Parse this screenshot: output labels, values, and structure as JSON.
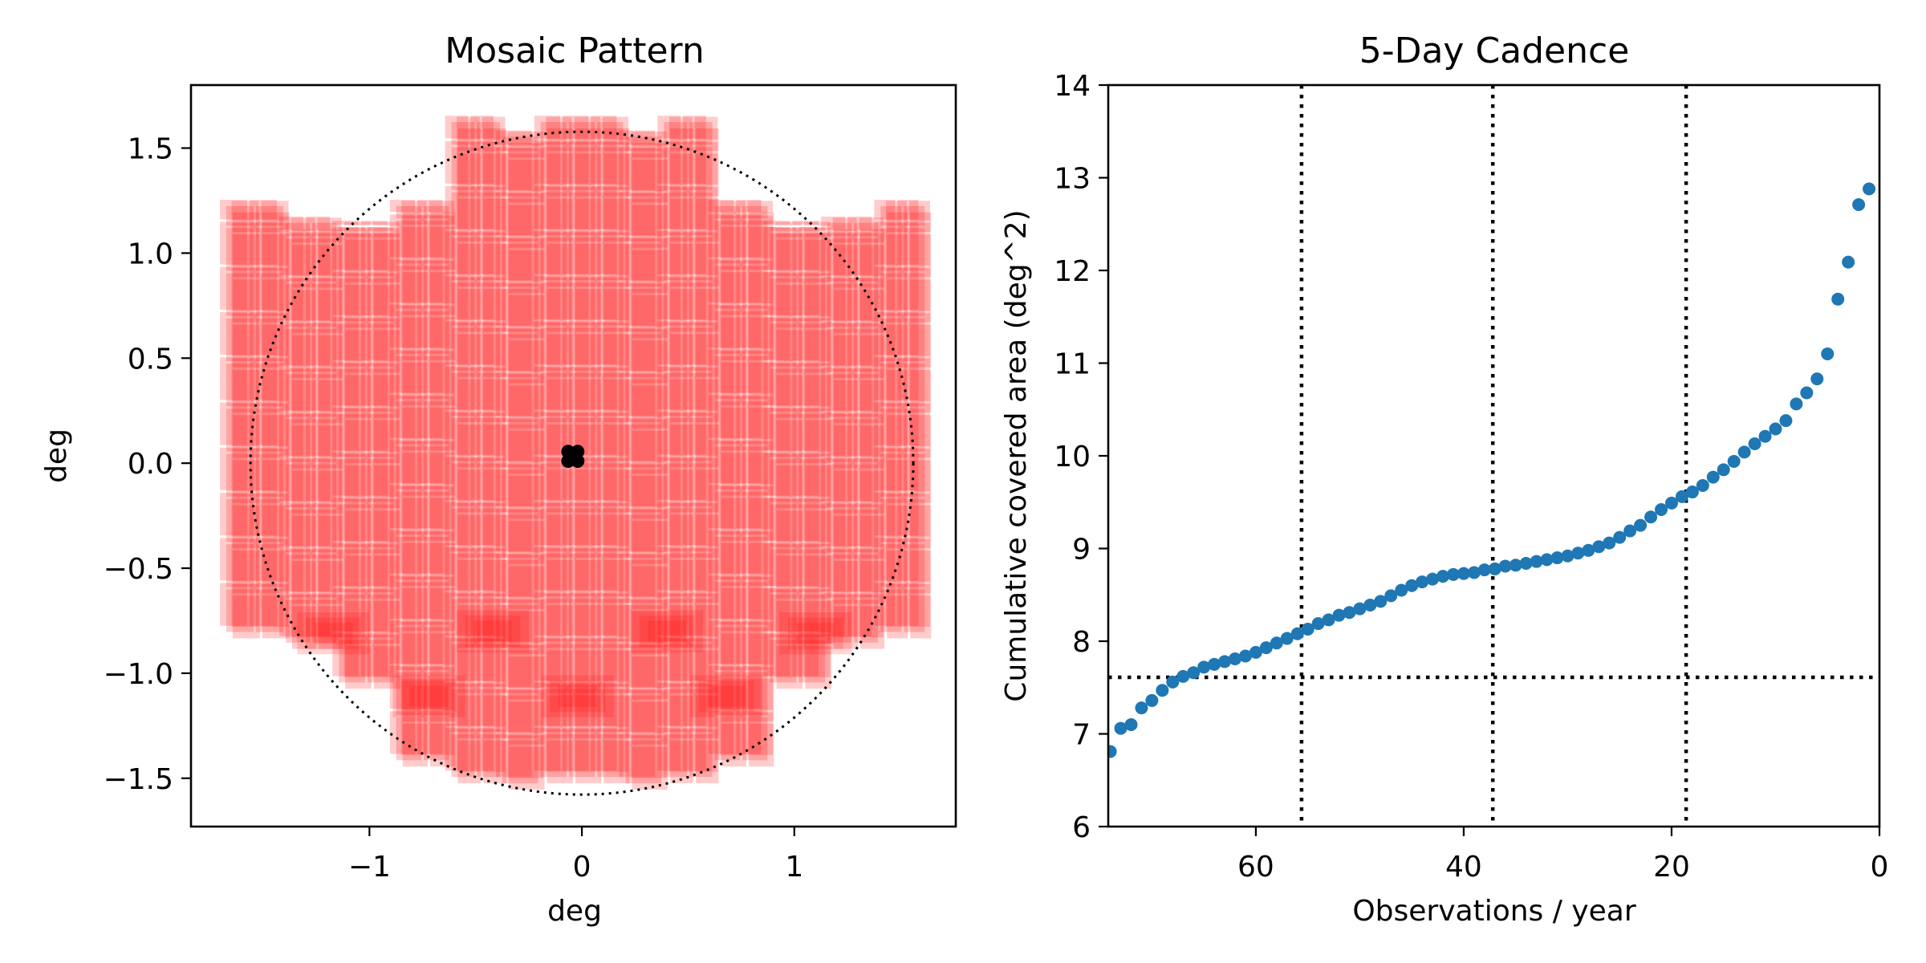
{
  "chart_data": [
    {
      "type": "scatter",
      "panel": "left",
      "title": "Mosaic Pattern",
      "xlabel": "deg",
      "ylabel": "deg",
      "xlim": [
        -1.84,
        1.76
      ],
      "ylim": [
        -1.73,
        1.8
      ],
      "xticks": [
        -1,
        0,
        1
      ],
      "xtick_labels": [
        "−1",
        "0",
        "1"
      ],
      "yticks": [
        -1.5,
        -1.0,
        -0.5,
        0.0,
        0.5,
        1.0,
        1.5
      ],
      "ytick_labels": [
        "−1.5",
        "−1.0",
        "−0.5",
        "0.0",
        "0.5",
        "1.0",
        "1.5"
      ],
      "grid": false,
      "mosaic": {
        "color": "#ff0000",
        "description": "Overlapping semi-transparent camera chip footprints (red) from dithered pointings",
        "chip_columns": [
          {
            "x": [
              -1.68,
              -1.4
            ],
            "y": [
              -0.81,
              1.23
            ]
          },
          {
            "x": [
              -1.4,
              -1.15
            ],
            "y": [
              -0.86,
              1.15
            ]
          },
          {
            "x": [
              -1.15,
              -0.88
            ],
            "y": [
              -1.05,
              1.13
            ]
          },
          {
            "x": [
              -0.88,
              -0.62
            ],
            "y": [
              -1.42,
              1.23
            ]
          },
          {
            "x": [
              -0.62,
              -0.38
            ],
            "y": [
              -1.5,
              1.63
            ]
          },
          {
            "x": [
              -0.38,
              -0.2
            ],
            "y": [
              -1.53,
              1.56
            ]
          },
          {
            "x": [
              -0.2,
              0.2
            ],
            "y": [
              -1.5,
              1.63
            ]
          },
          {
            "x": [
              0.2,
              0.38
            ],
            "y": [
              -1.53,
              1.56
            ]
          },
          {
            "x": [
              0.38,
              0.62
            ],
            "y": [
              -1.5,
              1.63
            ]
          },
          {
            "x": [
              0.62,
              0.88
            ],
            "y": [
              -1.42,
              1.23
            ]
          },
          {
            "x": [
              0.88,
              1.15
            ],
            "y": [
              -1.05,
              1.13
            ]
          },
          {
            "x": [
              1.15,
              1.4
            ],
            "y": [
              -0.86,
              1.15
            ]
          },
          {
            "x": [
              1.4,
              1.62
            ],
            "y": [
              -0.81,
              1.23
            ]
          }
        ],
        "dithers": [
          [
            0.0,
            0.0
          ],
          [
            0.03,
            -0.03
          ],
          [
            -0.03,
            0.03
          ],
          [
            0.025,
            0.025
          ]
        ],
        "overlap_hotspots": [
          {
            "x": -1.17,
            "y": -0.81
          },
          {
            "x": -0.42,
            "y": -0.8
          },
          {
            "x": 0.4,
            "y": -0.8
          },
          {
            "x": 1.1,
            "y": -0.81
          },
          {
            "x": -0.72,
            "y": -1.11
          },
          {
            "x": -0.02,
            "y": -1.11
          },
          {
            "x": 0.68,
            "y": -1.11
          }
        ]
      },
      "circle": {
        "center": [
          0,
          0
        ],
        "radius": 1.56,
        "style": "dotted",
        "color": "#000000"
      },
      "center_points": {
        "color": "#000000",
        "x": [
          -0.065,
          -0.02,
          -0.065,
          -0.02
        ],
        "y": [
          0.055,
          0.055,
          0.01,
          0.01
        ]
      }
    },
    {
      "type": "scatter",
      "panel": "right",
      "title": "5-Day Cadence",
      "xlabel": "Observations / year",
      "ylabel": "Cumulative covered area (deg^2)",
      "xlim": [
        74.2,
        0
      ],
      "ylim": [
        6,
        14
      ],
      "xticks": [
        60,
        40,
        20,
        0
      ],
      "xtick_labels": [
        "60",
        "40",
        "20",
        "0"
      ],
      "yticks": [
        6,
        7,
        8,
        9,
        10,
        11,
        12,
        13,
        14
      ],
      "ytick_labels": [
        "6",
        "7",
        "8",
        "9",
        "10",
        "11",
        "12",
        "13",
        "14"
      ],
      "grid": false,
      "series": [
        {
          "name": "coverage",
          "color": "#1f77b4",
          "x": [
            74,
            73,
            72,
            71,
            70,
            69,
            68,
            67,
            66,
            65,
            64,
            63,
            62,
            61,
            60,
            59,
            58,
            57,
            56,
            55,
            54,
            53,
            52,
            51,
            50,
            49,
            48,
            47,
            46,
            45,
            44,
            43,
            42,
            41,
            40,
            39,
            38,
            37,
            36,
            35,
            34,
            33,
            32,
            31,
            30,
            29,
            28,
            27,
            26,
            25,
            24,
            23,
            22,
            21,
            20,
            19,
            18,
            17,
            16,
            15,
            14,
            13,
            12,
            11,
            10,
            9,
            8,
            7,
            6,
            5,
            4,
            3,
            2,
            1
          ],
          "y": [
            6.81,
            7.06,
            7.1,
            7.28,
            7.36,
            7.47,
            7.56,
            7.62,
            7.66,
            7.72,
            7.75,
            7.78,
            7.81,
            7.84,
            7.88,
            7.93,
            7.98,
            8.03,
            8.08,
            8.13,
            8.19,
            8.23,
            8.28,
            8.31,
            8.35,
            8.39,
            8.43,
            8.49,
            8.55,
            8.6,
            8.64,
            8.67,
            8.7,
            8.72,
            8.73,
            8.74,
            8.77,
            8.78,
            8.81,
            8.82,
            8.84,
            8.86,
            8.88,
            8.9,
            8.92,
            8.95,
            8.98,
            9.02,
            9.06,
            9.12,
            9.19,
            9.25,
            9.34,
            9.42,
            9.49,
            9.56,
            9.61,
            9.68,
            9.77,
            9.85,
            9.94,
            10.04,
            10.13,
            10.21,
            10.29,
            10.38,
            10.56,
            10.68,
            10.83,
            11.1,
            11.69,
            12.09,
            12.71,
            12.88
          ]
        }
      ],
      "hlines": [
        {
          "y": 7.61,
          "style": "dotted",
          "color": "#000000"
        }
      ],
      "vlines": [
        {
          "x": 55.6,
          "style": "dotted",
          "color": "#000000"
        },
        {
          "x": 37.2,
          "style": "dotted",
          "color": "#000000"
        },
        {
          "x": 18.6,
          "style": "dotted",
          "color": "#000000"
        }
      ]
    }
  ]
}
